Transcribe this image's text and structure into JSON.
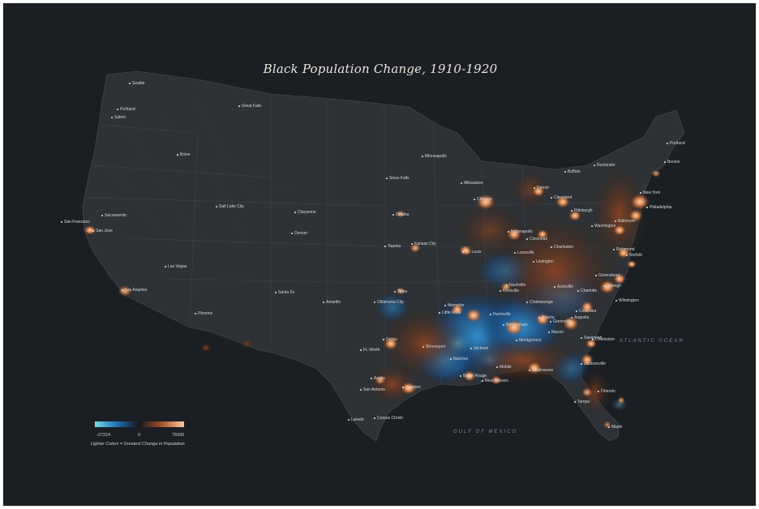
{
  "title": "Black Population Change, 1910-1920",
  "colors": {
    "background": "#1b1f24",
    "land": "#2e3236",
    "decrease_strong": "#5fd3e6",
    "decrease": "#1f5f9f",
    "neutral": "#15181c",
    "increase": "#a8562c",
    "increase_strong": "#ffc79a"
  },
  "water_labels": {
    "atlantic": "ATLANTIC OCEAN",
    "gulf": "GULF OF MEXICO"
  },
  "legend": {
    "min": "-27224",
    "mid": "0",
    "max": "76936",
    "note": "Lighter Colors = Greatest Change in Population"
  },
  "cities": [
    {
      "name": "Seattle"
    },
    {
      "name": "Portland"
    },
    {
      "name": "Salem"
    },
    {
      "name": "Great Falls"
    },
    {
      "name": "Boise"
    },
    {
      "name": "Sacramento"
    },
    {
      "name": "San Francisco"
    },
    {
      "name": "San Jose"
    },
    {
      "name": "Salt Lake City"
    },
    {
      "name": "Cheyenne"
    },
    {
      "name": "Denver"
    },
    {
      "name": "Las Vegas"
    },
    {
      "name": "Los Angeles"
    },
    {
      "name": "Phoenix"
    },
    {
      "name": "Santa Fe"
    },
    {
      "name": "Amarillo"
    },
    {
      "name": "Minneapolis"
    },
    {
      "name": "Sioux Falls"
    },
    {
      "name": "Omaha"
    },
    {
      "name": "Topeka"
    },
    {
      "name": "Kansas City"
    },
    {
      "name": "Tulsa"
    },
    {
      "name": "Oklahoma City"
    },
    {
      "name": "Dallas"
    },
    {
      "name": "Ft. Worth"
    },
    {
      "name": "Austin"
    },
    {
      "name": "San Antonio"
    },
    {
      "name": "Houston"
    },
    {
      "name": "Laredo"
    },
    {
      "name": "Corpus Christi"
    },
    {
      "name": "Milwaukee"
    },
    {
      "name": "Chicago"
    },
    {
      "name": "Detroit"
    },
    {
      "name": "Cleveland"
    },
    {
      "name": "Buffalo"
    },
    {
      "name": "Rochester"
    },
    {
      "name": "Portland"
    },
    {
      "name": "Boston"
    },
    {
      "name": "New York"
    },
    {
      "name": "Philadelphia"
    },
    {
      "name": "Pittsburgh"
    },
    {
      "name": "Baltimore"
    },
    {
      "name": "Washington"
    },
    {
      "name": "Indianapolis"
    },
    {
      "name": "Cincinnati"
    },
    {
      "name": "St. Louis"
    },
    {
      "name": "Louisville"
    },
    {
      "name": "Lexington"
    },
    {
      "name": "Charleston"
    },
    {
      "name": "Richmond"
    },
    {
      "name": "Norfolk"
    },
    {
      "name": "Nashville"
    },
    {
      "name": "Knoxville"
    },
    {
      "name": "Asheville"
    },
    {
      "name": "Greensboro"
    },
    {
      "name": "Raleigh"
    },
    {
      "name": "Charlotte"
    },
    {
      "name": "Wilmington"
    },
    {
      "name": "Chattanooga"
    },
    {
      "name": "Memphis"
    },
    {
      "name": "Little Rock"
    },
    {
      "name": "Huntsville"
    },
    {
      "name": "Birmingham"
    },
    {
      "name": "Atlanta"
    },
    {
      "name": "Greenville"
    },
    {
      "name": "Augusta"
    },
    {
      "name": "Columbia"
    },
    {
      "name": "Charleston"
    },
    {
      "name": "Savannah"
    },
    {
      "name": "Macon"
    },
    {
      "name": "Montgomery"
    },
    {
      "name": "Jackson"
    },
    {
      "name": "Shreveport"
    },
    {
      "name": "Natchez"
    },
    {
      "name": "Baton Rouge"
    },
    {
      "name": "New Orleans"
    },
    {
      "name": "Mobile"
    },
    {
      "name": "Tallahassee"
    },
    {
      "name": "Jacksonville"
    },
    {
      "name": "Orlando"
    },
    {
      "name": "Tampa"
    },
    {
      "name": "Miami"
    }
  ]
}
